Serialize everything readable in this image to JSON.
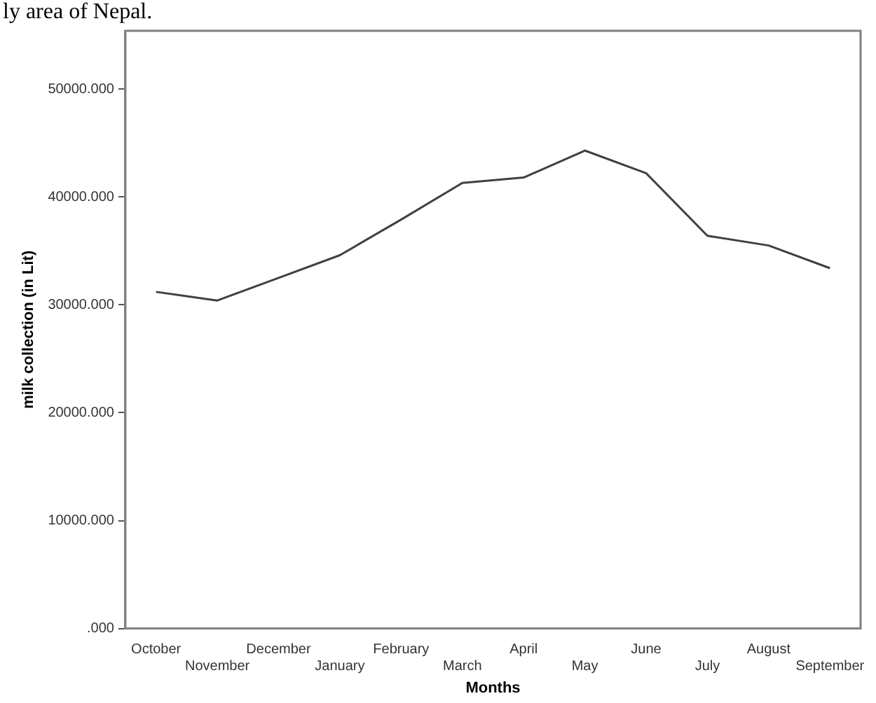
{
  "chart_data": {
    "type": "line",
    "xlabel": "Months",
    "ylabel": "milk collection (in Lit)",
    "annotations": [
      "ly area of Nepal."
    ],
    "categories": [
      "October",
      "November",
      "December",
      "January",
      "February",
      "March",
      "April",
      "May",
      "June",
      "July",
      "August",
      "September"
    ],
    "series": [
      {
        "color": "#404040",
        "values": [
          31200,
          30400,
          32500,
          34600,
          37900,
          41300,
          41800,
          44300,
          42200,
          36400,
          35500,
          33400
        ]
      }
    ],
    "ylim": [
      0,
      55400
    ],
    "yticks": [
      {
        "value": 0,
        "label": ".000"
      },
      {
        "value": 10000,
        "label": "10000.000"
      },
      {
        "value": 20000,
        "label": "20000.000"
      },
      {
        "value": 30000,
        "label": "30000.000"
      },
      {
        "value": 40000,
        "label": "40000.000"
      },
      {
        "value": 50000,
        "label": "50000.000"
      }
    ],
    "grid": false,
    "legend": false,
    "marker": "none",
    "line_style": "solid"
  }
}
